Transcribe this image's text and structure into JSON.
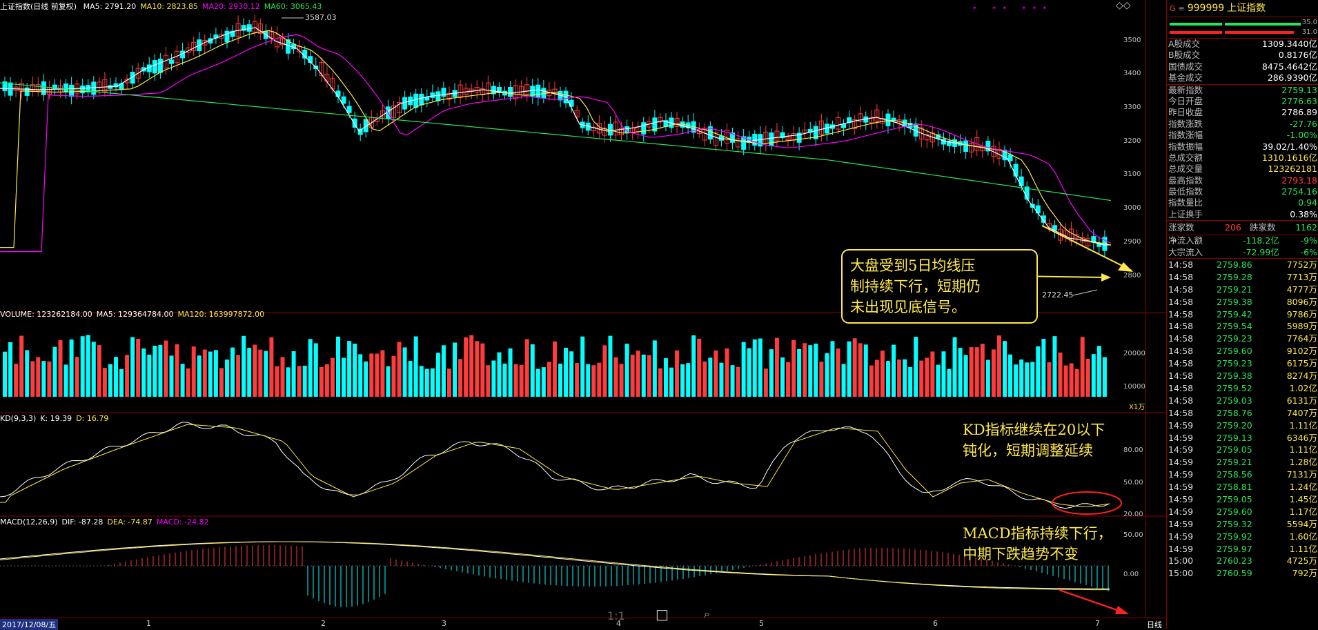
{
  "main": {
    "title": "上证指数(日线 前复权)",
    "ma": [
      {
        "label": "MA5: 2791.20",
        "color": "#ffffff"
      },
      {
        "label": "MA10: 2823.85",
        "color": "#ffe94a"
      },
      {
        "label": "MA20: 2930.12",
        "color": "#ff00ff"
      },
      {
        "label": "MA60: 3065.43",
        "color": "#27e55b"
      }
    ],
    "high_mark": "3587.03",
    "low_mark": "2722.45",
    "yaxis": [
      "3500",
      "3400",
      "3300",
      "3200",
      "3100",
      "3000",
      "2900",
      "2800"
    ]
  },
  "volume": {
    "header": [
      {
        "label": "VOLUME: 123262184.00",
        "color": "#ffffff"
      },
      {
        "label": "MA5: 129364784.00",
        "color": "#ffffff"
      },
      {
        "label": "MA120: 163997872.00",
        "color": "#ffe94a"
      }
    ],
    "yaxis": [
      "20000",
      "10000"
    ],
    "unit": "X1万"
  },
  "kd": {
    "header": [
      {
        "label": "KD(9,3,3)",
        "color": "#ffffff"
      },
      {
        "label": "K: 19.39",
        "color": "#ffffff"
      },
      {
        "label": "D: 16.79",
        "color": "#ffe94a"
      }
    ],
    "yaxis": [
      "80.00",
      "50.00",
      "20.00"
    ]
  },
  "macd": {
    "header": [
      {
        "label": "MACD(12,26,9)",
        "color": "#ffffff"
      },
      {
        "label": "DIF: -87.28",
        "color": "#ffffff"
      },
      {
        "label": "DEA: -74.87",
        "color": "#ffe94a"
      },
      {
        "label": "MACD: -24.82",
        "color": "#ff00ff"
      }
    ],
    "yaxis": [
      "50.00",
      "0.00"
    ]
  },
  "annotations": {
    "box": [
      "大盘受到5日均线压",
      "制持续下行，短期仍",
      "未出现见底信号。"
    ],
    "kd": [
      "KD指标继续在20以下",
      "钝化，短期调整延续"
    ],
    "macd": [
      "MACD指标持续下行，",
      "中期下跌趋势不变"
    ]
  },
  "bottom": {
    "date": "2017/12/08/五",
    "months": [
      "1",
      "2",
      "3",
      "4",
      "5",
      "6",
      "7"
    ],
    "toolbar": [
      "1:1",
      "□",
      "⌕"
    ],
    "period": "日线"
  },
  "right_panel": {
    "code": "999999",
    "name": "上证指数",
    "bar_labels": [
      "35.0",
      "31.0"
    ],
    "stats": [
      {
        "label": "A股成交",
        "value": "1309.3440亿",
        "color": "#fff"
      },
      {
        "label": "B股成交",
        "value": "0.8176亿",
        "color": "#fff"
      },
      {
        "label": "国债成交",
        "value": "8475.4642亿",
        "color": "#fff"
      },
      {
        "label": "基金成交",
        "value": "286.9390亿",
        "color": "#fff"
      }
    ],
    "quote": [
      {
        "label": "最新指数",
        "value": "2759.13",
        "color": "#27e55b"
      },
      {
        "label": "今日开盘",
        "value": "2776.63",
        "color": "#27e55b"
      },
      {
        "label": "昨日收盘",
        "value": "2786.89",
        "color": "#fff"
      },
      {
        "label": "指数涨跌",
        "value": "-27.76",
        "color": "#27e55b"
      },
      {
        "label": "指数涨幅",
        "value": "-1.00%",
        "color": "#27e55b"
      },
      {
        "label": "指数振幅",
        "value": "39.02/1.40%",
        "color": "#fff"
      },
      {
        "label": "总成交额",
        "value": "1310.1616亿",
        "color": "#ffe94a"
      },
      {
        "label": "总成交量",
        "value": "123262181",
        "color": "#ffe94a"
      },
      {
        "label": "最高指数",
        "value": "2793.18",
        "color": "#ff3b3b"
      },
      {
        "label": "最低指数",
        "value": "2754.16",
        "color": "#27e55b"
      },
      {
        "label": "指数量比",
        "value": "0.94",
        "color": "#27e55b"
      },
      {
        "label": "上证换手",
        "value": "0.38%",
        "color": "#fff"
      }
    ],
    "updown": {
      "up_label": "涨家数",
      "up": "206",
      "down_label": "跌家数",
      "down": "1162"
    },
    "flow": [
      {
        "label": "净流入额",
        "value": "-118.2亿",
        "pct": "-9%"
      },
      {
        "label": "大宗流入",
        "value": "-72.99亿",
        "pct": "-6%"
      }
    ],
    "ticks": [
      [
        "14:58",
        "2759.86",
        "7752万"
      ],
      [
        "14:58",
        "2759.28",
        "7713万"
      ],
      [
        "14:58",
        "2759.21",
        "4777万"
      ],
      [
        "14:58",
        "2759.38",
        "8096万"
      ],
      [
        "14:58",
        "2759.42",
        "9786万"
      ],
      [
        "14:58",
        "2759.54",
        "5989万"
      ],
      [
        "14:58",
        "2759.23",
        "7764万"
      ],
      [
        "14:58",
        "2759.60",
        "9102万"
      ],
      [
        "14:58",
        "2759.23",
        "6175万"
      ],
      [
        "14:58",
        "2759.38",
        "8274万"
      ],
      [
        "14:58",
        "2759.52",
        "1.02亿"
      ],
      [
        "14:58",
        "2759.03",
        "6131万"
      ],
      [
        "14:58",
        "2758.76",
        "7407万"
      ],
      [
        "14:59",
        "2759.20",
        "1.11亿"
      ],
      [
        "14:59",
        "2759.13",
        "6346万"
      ],
      [
        "14:59",
        "2759.05",
        "1.11亿"
      ],
      [
        "14:59",
        "2759.21",
        "1.28亿"
      ],
      [
        "14:59",
        "2758.56",
        "7131万"
      ],
      [
        "14:59",
        "2758.81",
        "1.24亿"
      ],
      [
        "14:59",
        "2759.05",
        "1.45亿"
      ],
      [
        "14:59",
        "2759.60",
        "1.17亿"
      ],
      [
        "14:59",
        "2759.32",
        "5594万"
      ],
      [
        "14:59",
        "2759.92",
        "1.60亿"
      ],
      [
        "14:59",
        "2759.97",
        "1.11亿"
      ],
      [
        "15:00",
        "2760.23",
        "4725万"
      ],
      [
        "15:00",
        "2760.59",
        "792万"
      ]
    ]
  }
}
